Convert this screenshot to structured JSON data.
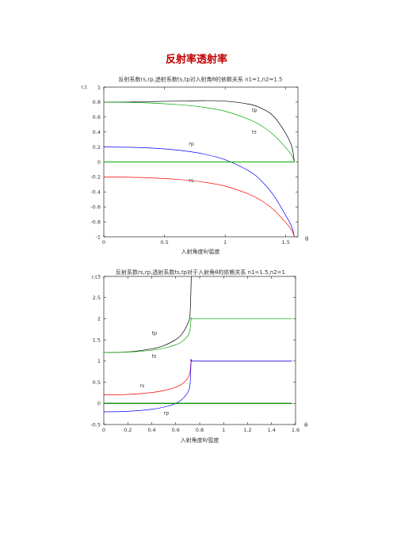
{
  "page": {
    "title": "反射率透射率"
  },
  "chart_data": [
    {
      "type": "line",
      "title": "反射系数rs,rp,透射系数ts,tp对入射角θ的依赖关系  n1=1,n2=1.5",
      "xlabel": "入射角度θ/弧度",
      "ylabel": "r,t",
      "x_end_label": "θ",
      "xlim": [
        0,
        1.6
      ],
      "ylim": [
        -1,
        1
      ],
      "xticks": [
        0,
        0.5,
        1,
        1.5
      ],
      "xtick_labels": [
        "0",
        "0.5",
        "1",
        "1.5"
      ],
      "yticks": [
        1,
        0.8,
        0.6,
        0.4,
        0.2,
        0,
        -0.2,
        -0.4,
        -0.6,
        -0.8,
        -1
      ],
      "ytick_labels": [
        "1",
        "0.8",
        "0.6",
        "0.4",
        "0.2",
        "0",
        "-0.2",
        "-0.4",
        "-0.6",
        "-0.8",
        "-1"
      ],
      "grid": false,
      "series": [
        {
          "name": "tp",
          "color": "#000000",
          "x": [
            0,
            0.2,
            0.4,
            0.6,
            0.8,
            1.0,
            1.2,
            1.3,
            1.4,
            1.5,
            1.55,
            1.5708
          ],
          "y": [
            0.8,
            0.801,
            0.807,
            0.813,
            0.819,
            0.813,
            0.771,
            0.716,
            0.61,
            0.379,
            0.204,
            0
          ]
        },
        {
          "name": "ts",
          "color": "#00aa00",
          "x": [
            0,
            0.2,
            0.4,
            0.6,
            0.8,
            1.0,
            1.2,
            1.3,
            1.4,
            1.5,
            1.55,
            1.5708
          ],
          "y": [
            0.8,
            0.796,
            0.786,
            0.768,
            0.736,
            0.677,
            0.567,
            0.483,
            0.361,
            0.19,
            0.085,
            0
          ]
        },
        {
          "name": "rp",
          "color": "#0000ff",
          "x": [
            0,
            0.2,
            0.4,
            0.6,
            0.8,
            1.0,
            1.2,
            1.3,
            1.4,
            1.5,
            1.55,
            1.5708
          ],
          "y": [
            0.2,
            0.197,
            0.185,
            0.16,
            0.114,
            0.03,
            -0.124,
            -0.255,
            -0.446,
            -0.715,
            -0.868,
            -1
          ]
        },
        {
          "name": "rs",
          "color": "#ff0000",
          "x": [
            0,
            0.2,
            0.4,
            0.6,
            0.8,
            1.0,
            1.2,
            1.3,
            1.4,
            1.5,
            1.55,
            1.5708
          ],
          "y": [
            -0.2,
            -0.204,
            -0.214,
            -0.232,
            -0.264,
            -0.323,
            -0.433,
            -0.517,
            -0.639,
            -0.81,
            -0.915,
            -1
          ]
        },
        {
          "name": "",
          "color": "#000000",
          "x": [
            0,
            1.5708
          ],
          "y": [
            0,
            0
          ]
        },
        {
          "name": "",
          "color": "#00aa00",
          "x": [
            0,
            1.5708
          ],
          "y": [
            0,
            0
          ]
        }
      ],
      "annotations": [
        {
          "text": "tp",
          "x": 1.22,
          "y": 0.67
        },
        {
          "text": "ts",
          "x": 1.22,
          "y": 0.38
        },
        {
          "text": "rp",
          "x": 0.7,
          "y": 0.22
        },
        {
          "text": "rs",
          "x": 0.7,
          "y": -0.27
        }
      ]
    },
    {
      "type": "line",
      "title": "反射系数rs,rp,透射系数ts,tp对于入射角θ的依赖关系  n1=1.5,n2=1",
      "xlabel": "入射角度θ/弧度",
      "ylabel": "r,t",
      "x_end_label": "θ",
      "xlim": [
        0,
        1.6
      ],
      "ylim": [
        -0.5,
        3
      ],
      "xticks": [
        0,
        0.2,
        0.4,
        0.6,
        0.8,
        1,
        1.2,
        1.4,
        1.6
      ],
      "xtick_labels": [
        "0",
        "0.2",
        "0.4",
        "0.6",
        "0.8",
        "1",
        "1.2",
        "1.4",
        "1.6"
      ],
      "yticks": [
        3,
        2.5,
        2,
        1.5,
        1,
        0.5,
        0,
        -0.5
      ],
      "ytick_labels": [
        "3",
        "2.5",
        "2",
        "1.5",
        "1",
        "0.5",
        "0",
        "-0.5"
      ],
      "grid": false,
      "series": [
        {
          "name": "tp",
          "color": "#000000",
          "x": [
            0,
            0.2,
            0.4,
            0.5,
            0.6,
            0.65,
            0.7,
            0.72,
            0.73
          ],
          "y": [
            1.2,
            1.216,
            1.289,
            1.364,
            1.507,
            1.633,
            1.879,
            2.127,
            3.0
          ]
        },
        {
          "name": "ts",
          "color": "#00aa00",
          "x": [
            0,
            0.2,
            0.4,
            0.5,
            0.6,
            0.65,
            0.7,
            0.72,
            0.7297,
            0.75,
            1.0,
            1.3,
            1.5708
          ],
          "y": [
            1.2,
            1.211,
            1.256,
            1.302,
            1.383,
            1.453,
            1.592,
            1.745,
            2.0,
            2.0,
            2.0,
            2.0,
            2.0
          ]
        },
        {
          "name": "rs",
          "color": "#ff0000",
          "x": [
            0,
            0.2,
            0.4,
            0.5,
            0.6,
            0.65,
            0.7,
            0.72,
            0.7297,
            0.75,
            1.0,
            1.3,
            1.5708
          ],
          "y": [
            0.2,
            0.211,
            0.256,
            0.302,
            0.383,
            0.453,
            0.592,
            0.745,
            1.0,
            1.0,
            1.0,
            1.0,
            1.0
          ]
        },
        {
          "name": "rp",
          "color": "#0000ff",
          "x": [
            0,
            0.2,
            0.4,
            0.5,
            0.55,
            0.6,
            0.65,
            0.7,
            0.72,
            0.7297,
            0.75,
            1.0,
            1.3,
            1.5708
          ],
          "y": [
            -0.2,
            -0.189,
            -0.14,
            -0.09,
            -0.052,
            0.0,
            0.088,
            0.253,
            0.463,
            1.0,
            1.0,
            1.0,
            1.0,
            1.0
          ]
        },
        {
          "name": "",
          "color": "#000000",
          "x": [
            0,
            1.5708
          ],
          "y": [
            0,
            0
          ]
        },
        {
          "name": "",
          "color": "#00aa00",
          "x": [
            0,
            1.5708
          ],
          "y": [
            0,
            0
          ]
        }
      ],
      "annotations": [
        {
          "text": "tp",
          "x": 0.4,
          "y": 1.62
        },
        {
          "text": "ts",
          "x": 0.4,
          "y": 1.08
        },
        {
          "text": "rs",
          "x": 0.3,
          "y": 0.38
        },
        {
          "text": "rp",
          "x": 0.5,
          "y": -0.27
        }
      ]
    }
  ]
}
